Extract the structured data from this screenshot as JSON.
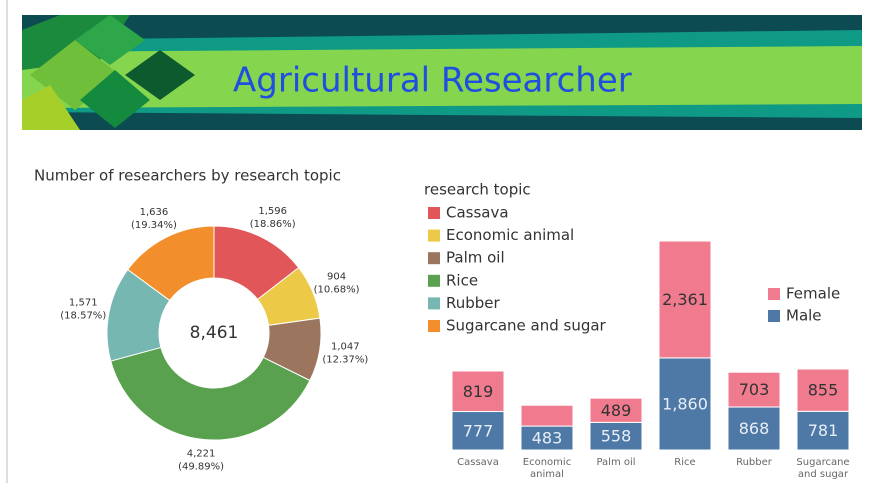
{
  "banner": {
    "title": "Agricultural Researcher"
  },
  "chart_data": [
    {
      "type": "donut",
      "title": "Number of researchers by  research topic",
      "legend_title": "research topic",
      "categories": [
        "Cassava",
        "Economic animal",
        "Palm oil",
        "Rice",
        "Rubber",
        "Sugarcane and sugar"
      ],
      "values": [
        1596,
        904,
        1047,
        4221,
        1571,
        1636
      ],
      "value_labels": [
        "1,596",
        "904",
        "1,047",
        "4,221",
        "1,571",
        "1,636"
      ],
      "percent_labels": [
        "(18.86%)",
        "(10.68%)",
        "(12.37%)",
        "(49.89%)",
        "(18.57%)",
        "(19.34%)"
      ],
      "colors": [
        "#e15759",
        "#edc948",
        "#9c755f",
        "#59a14f",
        "#76b7b2",
        "#f28e2b"
      ],
      "center_label": "8,461"
    },
    {
      "type": "stacked_bar",
      "categories": [
        "Cassava",
        "Economic animal",
        "Palm oil",
        "Rice",
        "Rubber",
        "Sugarcane and sugar"
      ],
      "series": [
        {
          "name": "Male",
          "color": "#4e79a7",
          "values": [
            777,
            483,
            558,
            1860,
            868,
            781
          ],
          "value_labels": [
            "777",
            "483",
            "558",
            "1,860",
            "868",
            "781"
          ]
        },
        {
          "name": "Female",
          "color": "#f07b8e",
          "values": [
            819,
            421,
            489,
            2361,
            703,
            855
          ],
          "value_labels": [
            "819",
            null,
            "489",
            "2,361",
            "703",
            "855"
          ]
        }
      ]
    }
  ]
}
